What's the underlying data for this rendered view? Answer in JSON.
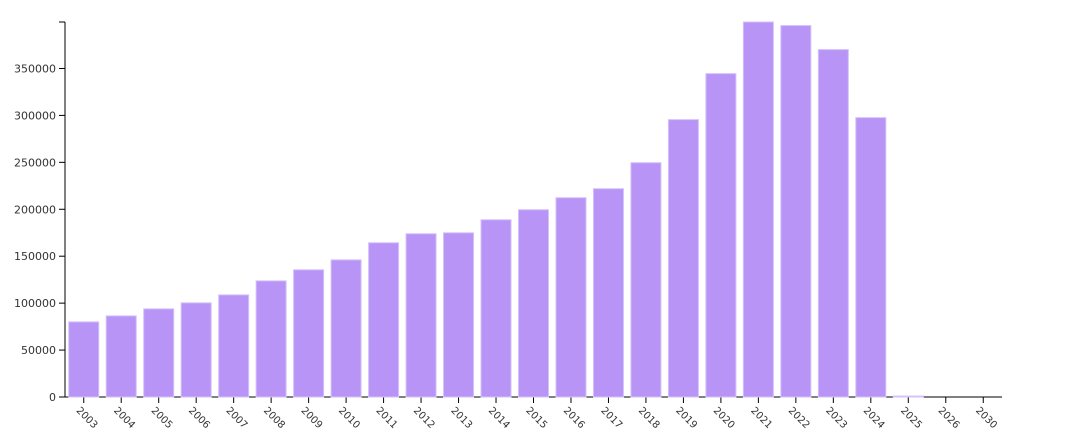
{
  "chart_data": {
    "type": "bar",
    "categories": [
      "2003",
      "2004",
      "2005",
      "2006",
      "2007",
      "2008",
      "2009",
      "2010",
      "2011",
      "2012",
      "2013",
      "2014",
      "2015",
      "2016",
      "2017",
      "2018",
      "2019",
      "2020",
      "2021",
      "2022",
      "2023",
      "2024",
      "2025",
      "2026",
      "2030"
    ],
    "values": [
      80000,
      86400,
      93900,
      100300,
      108800,
      123700,
      135500,
      146100,
      164300,
      173900,
      174900,
      188800,
      199500,
      212300,
      221900,
      249600,
      295500,
      344500,
      399500,
      395700,
      370100,
      297600,
      1000,
      0,
      0
    ],
    "color": "#b794f6",
    "ylim": [
      0,
      399500
    ],
    "yticks": [
      0,
      50000,
      100000,
      150000,
      200000,
      250000,
      300000,
      350000
    ]
  }
}
